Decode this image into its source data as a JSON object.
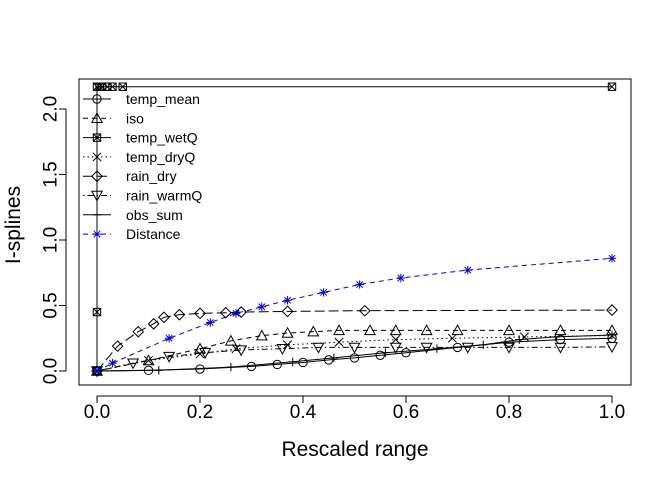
{
  "chart_data": {
    "type": "line",
    "title": "",
    "xlabel": "Rescaled range",
    "ylabel": "I-splines",
    "xlim": [
      0,
      1
    ],
    "ylim": [
      0,
      2.17
    ],
    "x_ticks": [
      0.0,
      0.2,
      0.4,
      0.6,
      0.8,
      1.0
    ],
    "x_tick_labels": [
      "0.0",
      "0.2",
      "0.4",
      "0.6",
      "0.8",
      "1.0"
    ],
    "y_ticks": [
      0.0,
      0.5,
      1.0,
      1.5,
      2.0
    ],
    "y_tick_labels": [
      "0.0",
      "0.5",
      "1.0",
      "1.5",
      "2.0"
    ],
    "grid": false,
    "legend_position": "top-left",
    "series": [
      {
        "name": "temp_mean",
        "color": "#000000",
        "line_style": "solid",
        "marker": "circle",
        "x": [
          0,
          0.1,
          0.2,
          0.3,
          0.35,
          0.4,
          0.45,
          0.5,
          0.55,
          0.6,
          0.7,
          0.8,
          0.9,
          1.0
        ],
        "y": [
          0,
          0.005,
          0.015,
          0.035,
          0.05,
          0.065,
          0.085,
          0.1,
          0.12,
          0.14,
          0.18,
          0.22,
          0.24,
          0.25
        ]
      },
      {
        "name": "iso",
        "color": "#000000",
        "line_style": "dashed",
        "marker": "triangle-up",
        "x": [
          0,
          0.1,
          0.2,
          0.26,
          0.32,
          0.37,
          0.42,
          0.47,
          0.53,
          0.58,
          0.64,
          0.7,
          0.8,
          0.9,
          1.0
        ],
        "y": [
          0,
          0.08,
          0.17,
          0.23,
          0.27,
          0.29,
          0.3,
          0.31,
          0.31,
          0.31,
          0.31,
          0.31,
          0.31,
          0.31,
          0.31
        ]
      },
      {
        "name": "temp_wetQ",
        "color": "#000000",
        "line_style": "solid",
        "marker": "square-x",
        "x": [
          0,
          0.0,
          0.0,
          0.005,
          0.01,
          0.02,
          0.03,
          0.05,
          1.0
        ],
        "y": [
          0,
          0.45,
          2.17,
          2.17,
          2.17,
          2.17,
          2.17,
          2.17,
          2.17
        ]
      },
      {
        "name": "temp_dryQ",
        "color": "#000000",
        "line_style": "dotted",
        "marker": "x",
        "x": [
          0,
          0.1,
          0.2,
          0.27,
          0.37,
          0.47,
          0.58,
          0.69,
          0.83,
          1.0
        ],
        "y": [
          0,
          0.08,
          0.13,
          0.17,
          0.2,
          0.22,
          0.24,
          0.25,
          0.26,
          0.27
        ]
      },
      {
        "name": "rain_dry",
        "color": "#000000",
        "line_style": "longdash",
        "marker": "diamond",
        "x": [
          0,
          0.04,
          0.08,
          0.11,
          0.13,
          0.16,
          0.2,
          0.25,
          0.28,
          0.37,
          0.52,
          1.0
        ],
        "y": [
          0,
          0.19,
          0.3,
          0.36,
          0.41,
          0.43,
          0.44,
          0.445,
          0.45,
          0.455,
          0.46,
          0.465
        ]
      },
      {
        "name": "rain_warmQ",
        "color": "#000000",
        "line_style": "dotdash",
        "marker": "triangle-down",
        "x": [
          0,
          0.07,
          0.14,
          0.21,
          0.28,
          0.36,
          0.43,
          0.5,
          0.58,
          0.64,
          0.72,
          0.8,
          0.9,
          1.0
        ],
        "y": [
          0,
          0.06,
          0.11,
          0.14,
          0.16,
          0.17,
          0.18,
          0.18,
          0.18,
          0.18,
          0.18,
          0.18,
          0.18,
          0.185
        ]
      },
      {
        "name": "obs_sum",
        "color": "#000000",
        "line_style": "solid",
        "marker": "plus",
        "x": [
          0,
          0.12,
          0.26,
          0.38,
          0.46,
          0.56,
          0.66,
          0.75,
          0.82,
          0.89,
          1.0
        ],
        "y": [
          0,
          0.005,
          0.03,
          0.07,
          0.1,
          0.14,
          0.17,
          0.2,
          0.24,
          0.26,
          0.275
        ]
      },
      {
        "name": "Distance",
        "color": "#0000cc",
        "line_style": "dashed",
        "marker": "asterisk",
        "x": [
          0,
          0.03,
          0.14,
          0.22,
          0.27,
          0.32,
          0.37,
          0.44,
          0.51,
          0.59,
          0.72,
          1.0
        ],
        "y": [
          0,
          0.06,
          0.25,
          0.37,
          0.44,
          0.49,
          0.54,
          0.6,
          0.66,
          0.71,
          0.77,
          0.86
        ]
      }
    ]
  }
}
